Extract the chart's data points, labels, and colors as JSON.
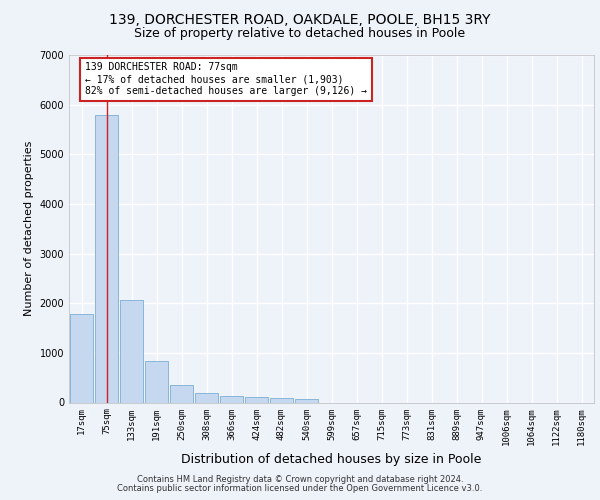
{
  "title_line1": "139, DORCHESTER ROAD, OAKDALE, POOLE, BH15 3RY",
  "title_line2": "Size of property relative to detached houses in Poole",
  "xlabel": "Distribution of detached houses by size in Poole",
  "ylabel": "Number of detached properties",
  "footnote1": "Contains HM Land Registry data © Crown copyright and database right 2024.",
  "footnote2": "Contains public sector information licensed under the Open Government Licence v3.0.",
  "annotation_line1": "139 DORCHESTER ROAD: 77sqm",
  "annotation_line2": "← 17% of detached houses are smaller (1,903)",
  "annotation_line3": "82% of semi-detached houses are larger (9,126) →",
  "bar_color": "#c5d8ef",
  "bar_edge_color": "#7bafd4",
  "ref_line_color": "#cc2222",
  "ref_line_x": 1.0,
  "annotation_box_edge_color": "#cc2222",
  "ylim": [
    0,
    7000
  ],
  "yticks": [
    0,
    1000,
    2000,
    3000,
    4000,
    5000,
    6000,
    7000
  ],
  "categories": [
    "17sqm",
    "75sqm",
    "133sqm",
    "191sqm",
    "250sqm",
    "308sqm",
    "366sqm",
    "424sqm",
    "482sqm",
    "540sqm",
    "599sqm",
    "657sqm",
    "715sqm",
    "773sqm",
    "831sqm",
    "889sqm",
    "947sqm",
    "1006sqm",
    "1064sqm",
    "1122sqm",
    "1180sqm"
  ],
  "values": [
    1780,
    5800,
    2060,
    830,
    345,
    195,
    130,
    110,
    95,
    75,
    0,
    0,
    0,
    0,
    0,
    0,
    0,
    0,
    0,
    0,
    0
  ],
  "background_color": "#eef2f9",
  "grid_color": "#ffffff",
  "title1_fontsize": 10,
  "title2_fontsize": 9,
  "ylabel_fontsize": 8,
  "xlabel_fontsize": 9,
  "footnote_fontsize": 6,
  "annot_fontsize": 7,
  "tick_fontsize": 6.5
}
